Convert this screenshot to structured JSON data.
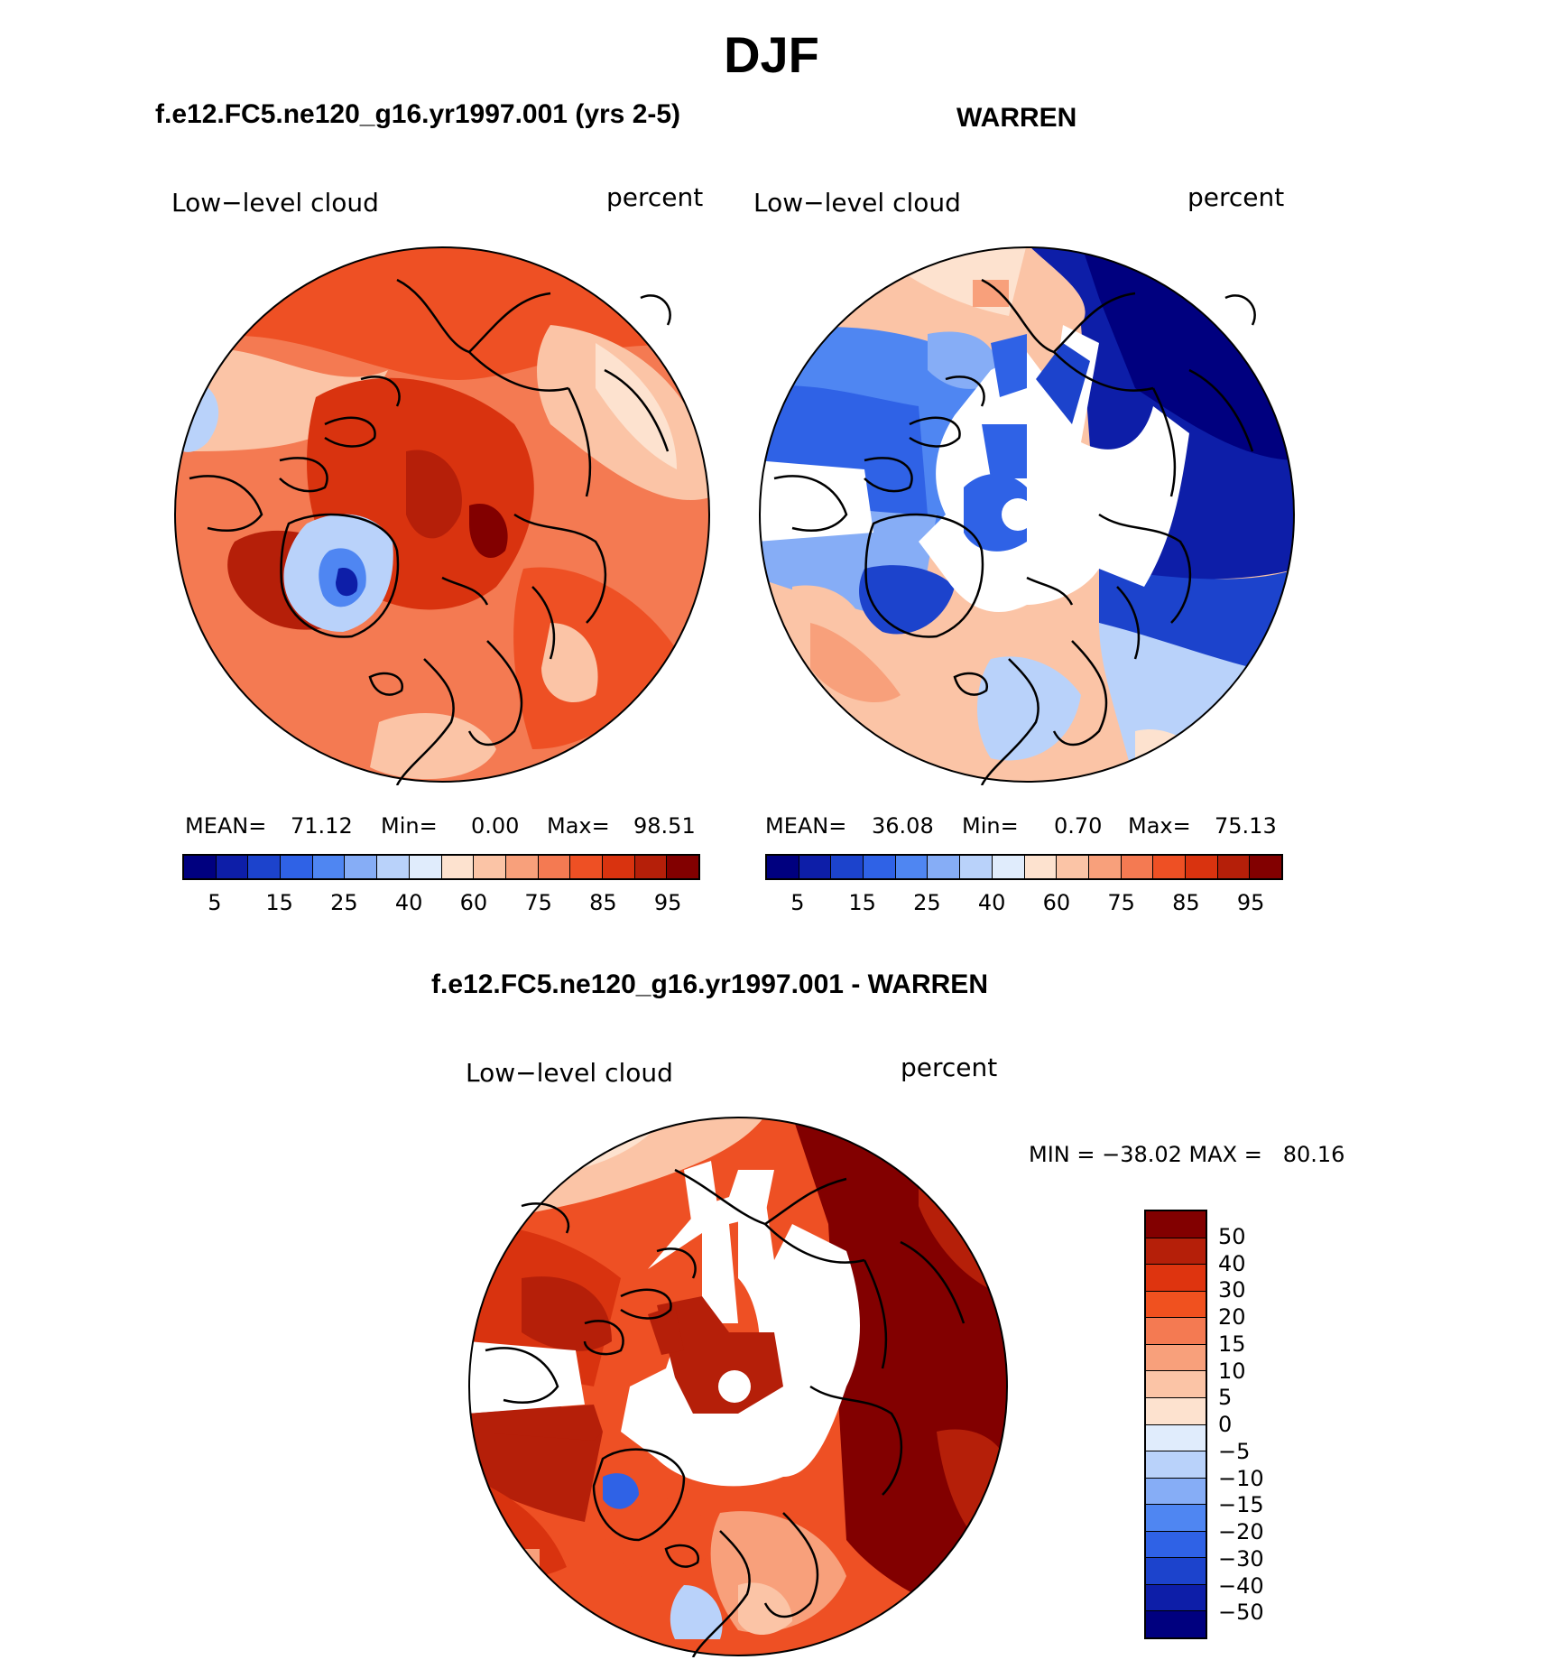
{
  "figure": {
    "title": "DJF",
    "colors": {
      "two_panel_scale": [
        "#00007f",
        "#0d1ea8",
        "#1c43cc",
        "#2f62e6",
        "#4f86f2",
        "#86adf6",
        "#b9d2fa",
        "#e0ecfc",
        "#fde2cf",
        "#fbc4a6",
        "#f8a07b",
        "#f47a52",
        "#ee5024",
        "#d9330f",
        "#b51f09",
        "#820000"
      ],
      "diff_scale": [
        "#820000",
        "#b51f09",
        "#de340f",
        "#f0511f",
        "#f47a52",
        "#f8a07b",
        "#fbc4a6",
        "#fde2cf",
        "#e0ecfc",
        "#b9d2fa",
        "#86adf6",
        "#4f86f2",
        "#2f62e6",
        "#1c43cc",
        "#0d1ea8",
        "#00007f"
      ]
    }
  },
  "panel_left": {
    "heading": "f.e12.FC5.ne120_g16.yr1997.001 (yrs 2-5)",
    "variable": "Low−level cloud",
    "units": "percent",
    "mean_label": "MEAN=",
    "mean": "71.12",
    "min_label": "Min=",
    "min": "0.00",
    "max_label": "Max=",
    "max": "98.51",
    "ticks": [
      "5",
      "15",
      "25",
      "40",
      "60",
      "75",
      "85",
      "95"
    ]
  },
  "panel_right": {
    "heading": "WARREN",
    "variable": "Low−level cloud",
    "units": "percent",
    "mean_label": "MEAN=",
    "mean": "36.08",
    "min_label": "Min=",
    "min": "0.70",
    "max_label": "Max=",
    "max": "75.13",
    "ticks": [
      "5",
      "15",
      "25",
      "40",
      "60",
      "75",
      "85",
      "95"
    ]
  },
  "panel_diff": {
    "heading": "f.e12.FC5.ne120_g16.yr1997.001 - WARREN",
    "variable": "Low−level cloud",
    "units": "percent",
    "minmax_text": "MIN = −38.02 MAX =   80.16",
    "ticks": [
      "50",
      "40",
      "30",
      "20",
      "15",
      "10",
      "5",
      "0",
      "−5",
      "−10",
      "−15",
      "−20",
      "−30",
      "−40",
      "−50"
    ]
  }
}
